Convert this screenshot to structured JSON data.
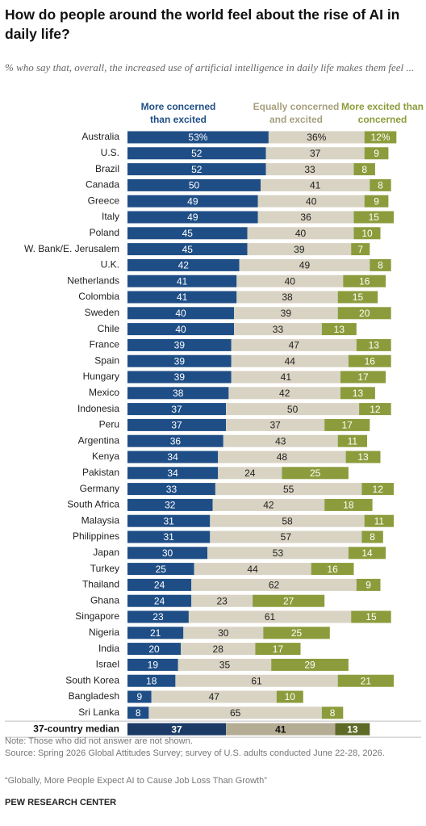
{
  "chart_data": {
    "type": "stacked-bar",
    "title": "How do people around the world feel about the rise of AI in daily life?",
    "subtitle": "% who say that, overall, the increased use of artificial intelligence in daily life makes them feel ...",
    "categories": [
      "Australia",
      "U.S.",
      "Brazil",
      "Canada",
      "Greece",
      "Italy",
      "Poland",
      "W. Bank/E. Jerusalem",
      "U.K.",
      "Netherlands",
      "Colombia",
      "Sweden",
      "Chile",
      "France",
      "Spain",
      "Hungary",
      "Mexico",
      "Indonesia",
      "Peru",
      "Argentina",
      "Kenya",
      "Pakistan",
      "Germany",
      "South Africa",
      "Malaysia",
      "Philippines",
      "Japan",
      "Turkey",
      "Thailand",
      "Ghana",
      "Singapore",
      "Nigeria",
      "India",
      "Israel",
      "South Korea",
      "Bangladesh",
      "Sri Lanka"
    ],
    "series": [
      {
        "name": "More concerned than excited",
        "color": "#1f4e86",
        "label_color": "#ffffff",
        "legend_color": "#1f4e86",
        "values": [
          53,
          52,
          52,
          50,
          49,
          49,
          45,
          45,
          42,
          41,
          41,
          40,
          40,
          39,
          39,
          39,
          38,
          37,
          37,
          36,
          34,
          34,
          33,
          32,
          31,
          31,
          30,
          25,
          24,
          24,
          23,
          21,
          20,
          19,
          18,
          9,
          8
        ],
        "value_labels": [
          "53%",
          "52",
          "52",
          "50",
          "49",
          "49",
          "45",
          "45",
          "42",
          "41",
          "41",
          "40",
          "40",
          "39",
          "39",
          "39",
          "38",
          "37",
          "37",
          "36",
          "34",
          "34",
          "33",
          "32",
          "31",
          "31",
          "30",
          "25",
          "24",
          "24",
          "23",
          "21",
          "20",
          "19",
          "18",
          "9",
          "8"
        ]
      },
      {
        "name": "Equally concerned and excited",
        "color": "#d8d3c3",
        "label_color": "#222222",
        "legend_color": "#a79f7f",
        "values": [
          36,
          37,
          33,
          41,
          40,
          36,
          40,
          39,
          49,
          40,
          38,
          39,
          33,
          47,
          44,
          41,
          42,
          50,
          37,
          43,
          48,
          24,
          55,
          42,
          58,
          57,
          53,
          44,
          62,
          23,
          61,
          30,
          28,
          35,
          61,
          47,
          65
        ],
        "value_labels": [
          "36%",
          "37",
          "33",
          "41",
          "40",
          "36",
          "40",
          "39",
          "49",
          "40",
          "38",
          "39",
          "33",
          "47",
          "44",
          "41",
          "42",
          "50",
          "37",
          "43",
          "48",
          "24",
          "55",
          "42",
          "58",
          "57",
          "53",
          "44",
          "62",
          "23",
          "61",
          "30",
          "28",
          "35",
          "61",
          "47",
          "65"
        ]
      },
      {
        "name": "More excited than concerned",
        "color": "#8c9c3c",
        "label_color": "#ffffff",
        "legend_color": "#8c9c3c",
        "values": [
          12,
          9,
          8,
          8,
          9,
          15,
          10,
          7,
          8,
          16,
          15,
          20,
          13,
          13,
          16,
          17,
          13,
          12,
          17,
          11,
          13,
          25,
          12,
          18,
          11,
          8,
          14,
          16,
          9,
          27,
          15,
          25,
          17,
          29,
          21,
          10,
          8
        ],
        "value_labels": [
          "12%",
          "9",
          "8",
          "8",
          "9",
          "15",
          "10",
          "7",
          "8",
          "16",
          "15",
          "20",
          "13",
          "13",
          "16",
          "17",
          "13",
          "12",
          "17",
          "11",
          "13",
          "25",
          "12",
          "18",
          "11",
          "8",
          "14",
          "16",
          "9",
          "27",
          "15",
          "25",
          "17",
          "29",
          "21",
          "10",
          "8"
        ]
      }
    ],
    "median": {
      "label": "37-country median",
      "values": [
        37,
        41,
        13
      ],
      "colors": [
        "#1b3a66",
        "#b4ad94",
        "#5d6b27"
      ],
      "label_colors": [
        "#ffffff",
        "#111111",
        "#ffffff"
      ]
    },
    "notes": [
      "Note: Those who did not answer are not shown.",
      "Source: Spring 2026 Global Attitudes Survey; survey of U.S. adults conducted June 22-28, 2026.",
      "“Globally, More People Expect AI to Cause Job Loss Than Growth”"
    ],
    "source": "PEW RESEARCH CENTER"
  }
}
